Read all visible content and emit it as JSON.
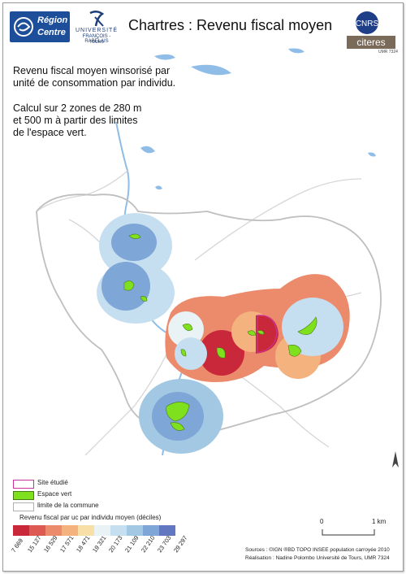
{
  "header": {
    "title": "Chartres : Revenu fiscal moyen",
    "logo_region": [
      "Région",
      "Centre"
    ],
    "logo_univ": [
      "UNIVERSITÉ",
      "FRANÇOIS - RABELAIS",
      "TOURS"
    ],
    "logo_cnrs": "CNRS",
    "logo_citeres": "citeres",
    "logo_citeres_sub": "UMR 7324"
  },
  "description": {
    "line1": "Revenu fiscal moyen  winsorisé par",
    "line2": "unité de consommation par individu.",
    "line3": "Calcul sur 2 zones de 280 m",
    "line4": "et 500 m à partir des limites",
    "line5": "de l'espace vert."
  },
  "legend": {
    "items": [
      {
        "label": "Site étudié",
        "color": "#cc3399"
      },
      {
        "label": "Espace vert",
        "color": "#7fe01e"
      },
      {
        "label": "limite de la commune",
        "color": "#b0b0b0"
      }
    ],
    "scale_title": "Revenu fiscal par uc par individu moyen  (déciles)",
    "classes": [
      {
        "label": "7 669",
        "color": "#c8283a"
      },
      {
        "label": "15 127",
        "color": "#dd5a52"
      },
      {
        "label": "16 529",
        "color": "#ec8a6c"
      },
      {
        "label": "17 571",
        "color": "#f4b27e"
      },
      {
        "label": "18 471",
        "color": "#f8dfa8"
      },
      {
        "label": "19 321",
        "color": "#e9f2f4"
      },
      {
        "label": "20 173",
        "color": "#c6dff0"
      },
      {
        "label": "21 109",
        "color": "#a2c8e3"
      },
      {
        "label": "22 210",
        "color": "#7ea6d6"
      },
      {
        "label": "23 703",
        "color": "#6177bf"
      },
      {
        "label": "29 297",
        "color": ""
      }
    ]
  },
  "scalebar": {
    "left_label": "0",
    "right_label": "1 km"
  },
  "sources": {
    "line1": "Sources : ©IGN ®BD TOPO INSEE population carroyée 2010",
    "line2": "Réalisation : Nadine Polombo Université de Tours, UMR 7324"
  },
  "colors": {
    "commune_border": "#bfbfbf",
    "water": "#8fbde8",
    "green_space": "#7fe01e",
    "site_outline": "#cc3399"
  }
}
